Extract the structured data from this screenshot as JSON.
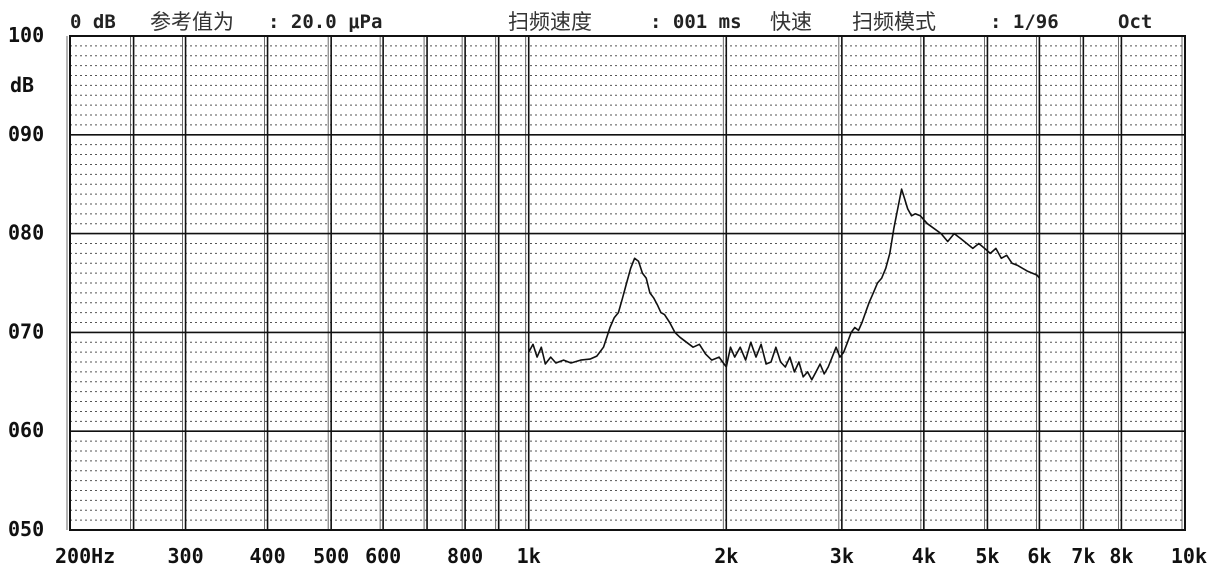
{
  "header": {
    "ref_prefix": "0 dB",
    "ref_label": "参考值为",
    "ref_value": ": 20.0 μPa",
    "sweep_speed_label": "扫频速度",
    "sweep_speed_value": ": 001 ms",
    "sweep_speed_mode": "快速",
    "sweep_mode_label": "扫频模式",
    "sweep_mode_value": ": 1/96",
    "sweep_mode_unit": "Oct"
  },
  "chart_data": {
    "type": "line",
    "title": "",
    "xlabel": "",
    "ylabel": "dB",
    "x_scale": "log",
    "xlim": [
      200,
      10000
    ],
    "ylim": [
      50,
      100
    ],
    "grid": true,
    "x_ticks": [
      {
        "value": 200,
        "label": "200Hz"
      },
      {
        "value": 300,
        "label": "300"
      },
      {
        "value": 400,
        "label": "400"
      },
      {
        "value": 500,
        "label": "500"
      },
      {
        "value": 600,
        "label": "600"
      },
      {
        "value": 800,
        "label": "800"
      },
      {
        "value": 1000,
        "label": "1k"
      },
      {
        "value": 2000,
        "label": "2k"
      },
      {
        "value": 3000,
        "label": "3k"
      },
      {
        "value": 4000,
        "label": "4k"
      },
      {
        "value": 5000,
        "label": "5k"
      },
      {
        "value": 6000,
        "label": "6k"
      },
      {
        "value": 7000,
        "label": "7k"
      },
      {
        "value": 8000,
        "label": "8k"
      },
      {
        "value": 10000,
        "label": "10k"
      }
    ],
    "extra_x_gridlines": [
      250,
      700,
      900
    ],
    "y_ticks": [
      {
        "value": 100,
        "label": "100"
      },
      {
        "value": 90,
        "label": "090"
      },
      {
        "value": 80,
        "label": "080"
      },
      {
        "value": 70,
        "label": "070"
      },
      {
        "value": 60,
        "label": "060"
      },
      {
        "value": 50,
        "label": "050"
      }
    ],
    "series": [
      {
        "x": [
          1000,
          1015,
          1030,
          1045,
          1060,
          1080,
          1100,
          1130,
          1160,
          1200,
          1240,
          1270,
          1300,
          1330,
          1350,
          1370,
          1390,
          1410,
          1430,
          1450,
          1470,
          1490,
          1510,
          1530,
          1550,
          1570,
          1590,
          1610,
          1640,
          1670,
          1700,
          1740,
          1780,
          1820,
          1860,
          1900,
          1950,
          2000,
          2030,
          2060,
          2100,
          2140,
          2180,
          2220,
          2260,
          2300,
          2340,
          2380,
          2420,
          2460,
          2500,
          2540,
          2580,
          2620,
          2660,
          2700,
          2740,
          2780,
          2820,
          2860,
          2900,
          2940,
          2980,
          3020,
          3060,
          3100,
          3140,
          3180,
          3220,
          3260,
          3300,
          3350,
          3400,
          3450,
          3500,
          3550,
          3600,
          3650,
          3700,
          3740,
          3780,
          3830,
          3880,
          3950,
          4050,
          4150,
          4250,
          4350,
          4450,
          4550,
          4650,
          4750,
          4850,
          4950,
          5050,
          5150,
          5250,
          5350,
          5450,
          5550,
          5650,
          5750,
          5850,
          5950,
          6000
        ],
        "values": [
          68.0,
          68.8,
          67.5,
          68.5,
          66.8,
          67.5,
          66.9,
          67.2,
          66.9,
          67.2,
          67.3,
          67.6,
          68.5,
          70.5,
          71.5,
          72.0,
          73.5,
          75.0,
          76.5,
          77.5,
          77.2,
          76.0,
          75.5,
          74.0,
          73.5,
          72.8,
          72.0,
          71.8,
          71.0,
          70.0,
          69.5,
          69.0,
          68.5,
          68.8,
          67.8,
          67.2,
          67.5,
          66.5,
          68.5,
          67.5,
          68.5,
          67.2,
          69.0,
          67.5,
          68.8,
          66.8,
          67.0,
          68.5,
          67.0,
          66.5,
          67.5,
          66.0,
          67.0,
          65.5,
          66.0,
          65.2,
          66.0,
          66.8,
          65.8,
          66.5,
          67.5,
          68.5,
          67.5,
          68.0,
          69.0,
          70.0,
          70.5,
          70.2,
          71.0,
          72.0,
          73.0,
          74.0,
          75.0,
          75.5,
          76.5,
          78.0,
          80.5,
          82.5,
          84.5,
          83.5,
          82.5,
          81.8,
          82.0,
          81.8,
          81.0,
          80.5,
          80.0,
          79.2,
          80.0,
          79.5,
          79.0,
          78.5,
          79.0,
          78.5,
          78.0,
          78.5,
          77.5,
          77.8,
          77.0,
          76.8,
          76.5,
          76.2,
          76.0,
          75.8,
          75.5
        ]
      }
    ]
  }
}
